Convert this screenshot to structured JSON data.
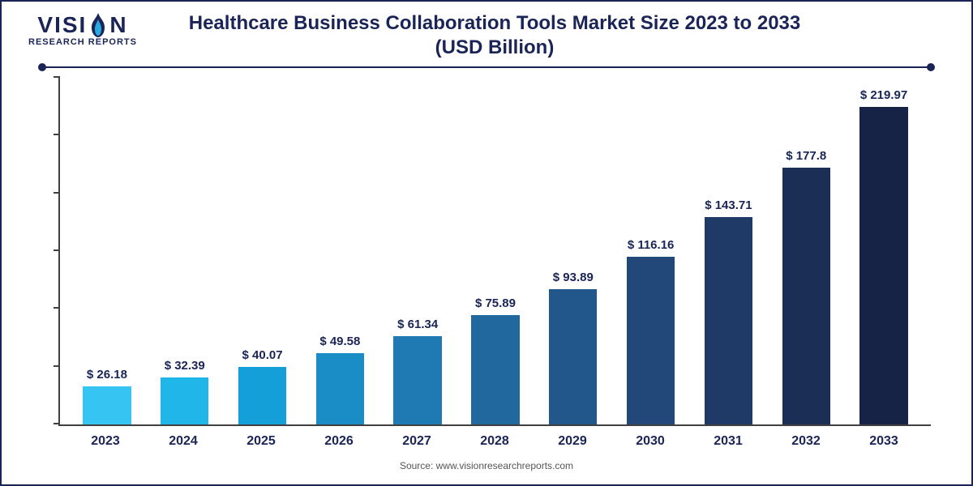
{
  "logo": {
    "line1_left": "VISI",
    "line1_right": "N",
    "line2": "RESEARCH REPORTS",
    "flame_outer": "#1a2456",
    "flame_inner": "#29a9e0"
  },
  "title": {
    "line1": "Healthcare Business Collaboration Tools Market Size 2023 to 2033",
    "line2": "(USD Billion)"
  },
  "chart": {
    "type": "bar",
    "ylim_max": 240,
    "y_ticks": [
      0,
      40,
      80,
      120,
      160,
      200,
      240
    ],
    "axis_color": "#404040",
    "label_prefix": "$ ",
    "label_fontsize": 15,
    "label_color": "#1a2456",
    "xaxis_fontsize": 16,
    "xaxis_color": "#1a2456",
    "bar_width_pct": 62,
    "bars": [
      {
        "year": "2023",
        "value": 26.18,
        "label": "26.18",
        "color": "#36c4f3"
      },
      {
        "year": "2024",
        "value": 32.39,
        "label": "32.39",
        "color": "#20b6ea"
      },
      {
        "year": "2025",
        "value": 40.07,
        "label": "40.07",
        "color": "#149fd8"
      },
      {
        "year": "2026",
        "value": 49.58,
        "label": "49.58",
        "color": "#1b8dc6"
      },
      {
        "year": "2027",
        "value": 61.34,
        "label": "61.34",
        "color": "#1f7ab3"
      },
      {
        "year": "2028",
        "value": 75.89,
        "label": "75.89",
        "color": "#21689f"
      },
      {
        "year": "2029",
        "value": 93.89,
        "label": "93.89",
        "color": "#22578c"
      },
      {
        "year": "2030",
        "value": 116.16,
        "label": "116.16",
        "color": "#214879"
      },
      {
        "year": "2031",
        "value": 143.71,
        "label": "143.71",
        "color": "#1f3a67"
      },
      {
        "year": "2032",
        "value": 177.8,
        "label": "177.8",
        "color": "#1b2e56"
      },
      {
        "year": "2033",
        "value": 219.97,
        "label": "219.97",
        "color": "#162346"
      }
    ]
  },
  "source": "Source: www.visionresearchreports.com",
  "background_color": "#ffffff",
  "border_color": "#1a2456"
}
